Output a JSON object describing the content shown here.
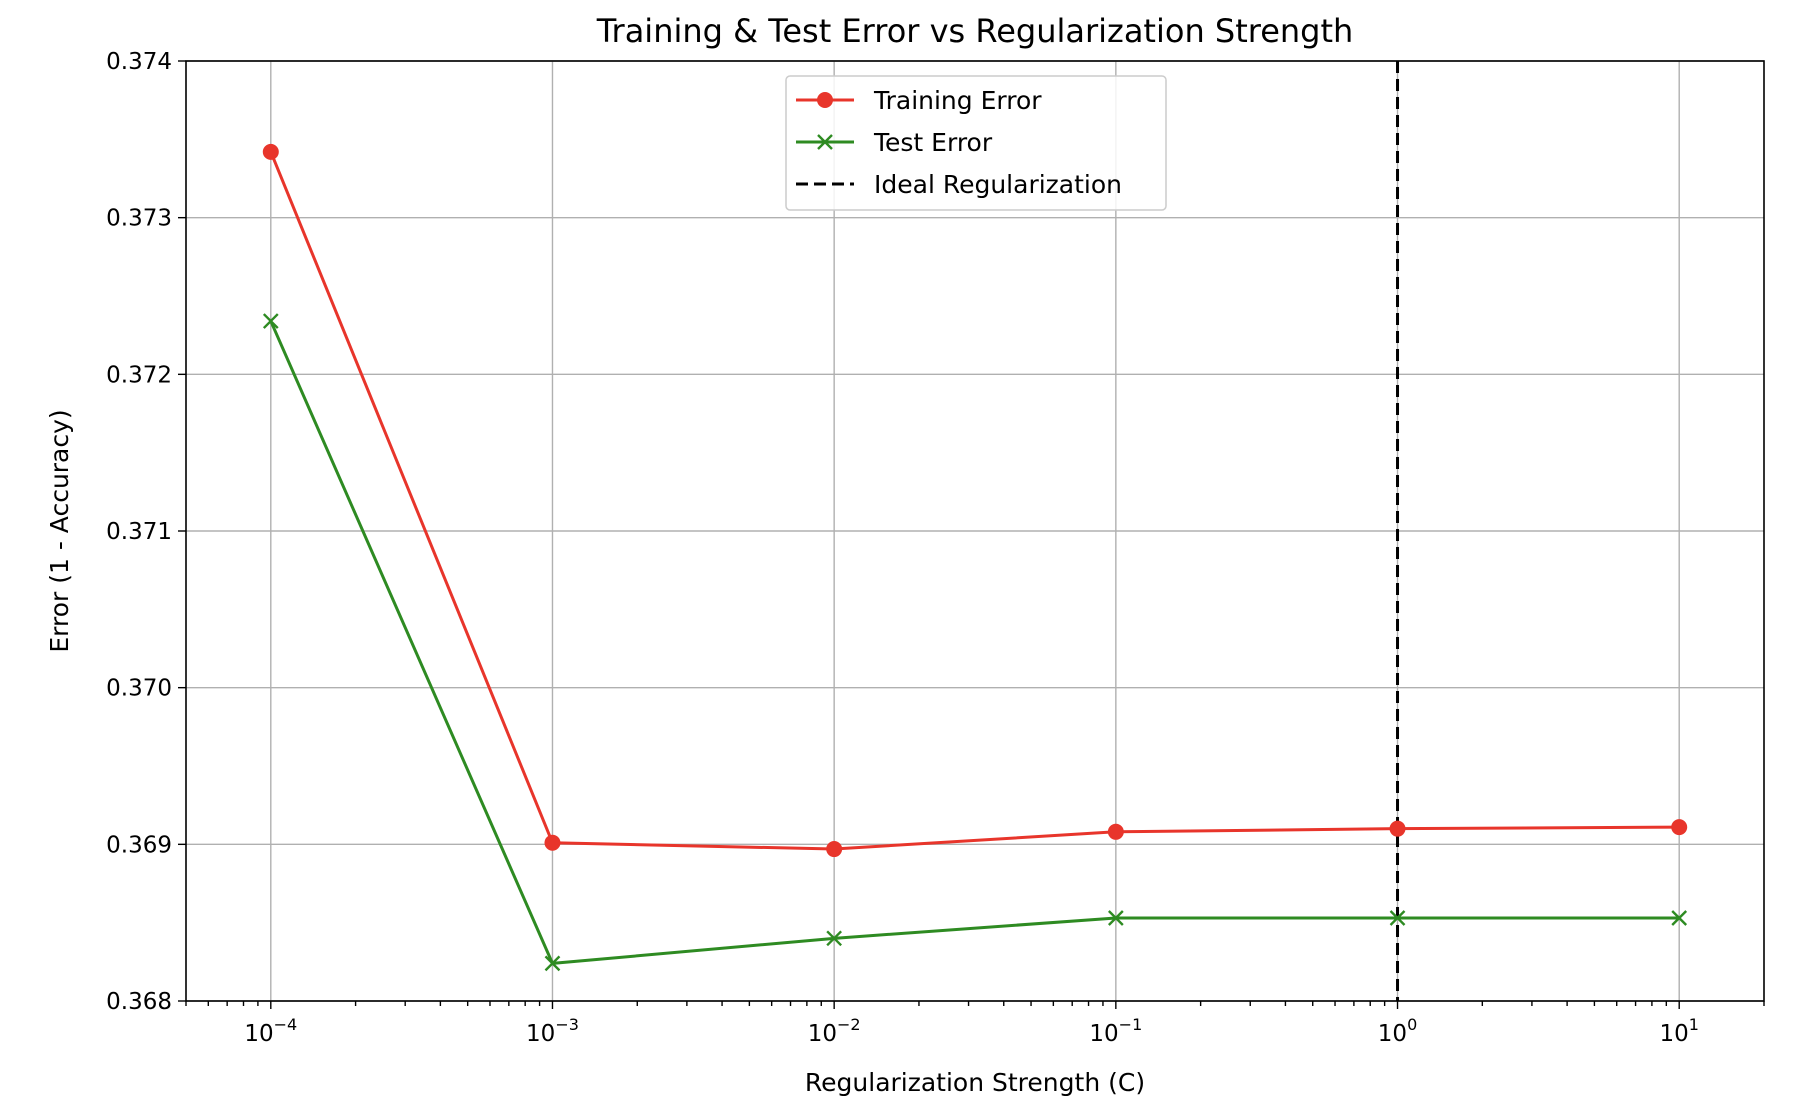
{
  "chart_data": {
    "type": "line",
    "title": "Training & Test Error vs Regularization Strength",
    "xlabel": "Regularization Strength (C)",
    "ylabel": "Error (1 - Accuracy)",
    "x_scale": "log",
    "xlim": [
      5e-05,
      20
    ],
    "ylim": [
      0.368,
      0.374
    ],
    "grid": true,
    "legend_position": "upper-center",
    "x": [
      0.0001,
      0.001,
      0.01,
      0.1,
      1,
      10
    ],
    "x_tick_labels": [
      {
        "base": "10",
        "exp": "−4"
      },
      {
        "base": "10",
        "exp": "−3"
      },
      {
        "base": "10",
        "exp": "−2"
      },
      {
        "base": "10",
        "exp": "−1"
      },
      {
        "base": "10",
        "exp": "0"
      },
      {
        "base": "10",
        "exp": "1"
      }
    ],
    "y_ticks": [
      "0.368",
      "0.369",
      "0.370",
      "0.371",
      "0.372",
      "0.373",
      "0.374"
    ],
    "series": [
      {
        "name": "Training Error",
        "color": "#e8352b",
        "marker": "circle",
        "values": [
          0.37342,
          0.36901,
          0.36897,
          0.36908,
          0.3691,
          0.36911
        ]
      },
      {
        "name": "Test Error",
        "color": "#2e8b22",
        "marker": "x",
        "values": [
          0.37234,
          0.36824,
          0.3684,
          0.36853,
          0.36853,
          0.36853
        ]
      }
    ],
    "reference_line": {
      "name": "Ideal Regularization",
      "x": 1,
      "color": "#000000",
      "style": "dashed"
    }
  }
}
